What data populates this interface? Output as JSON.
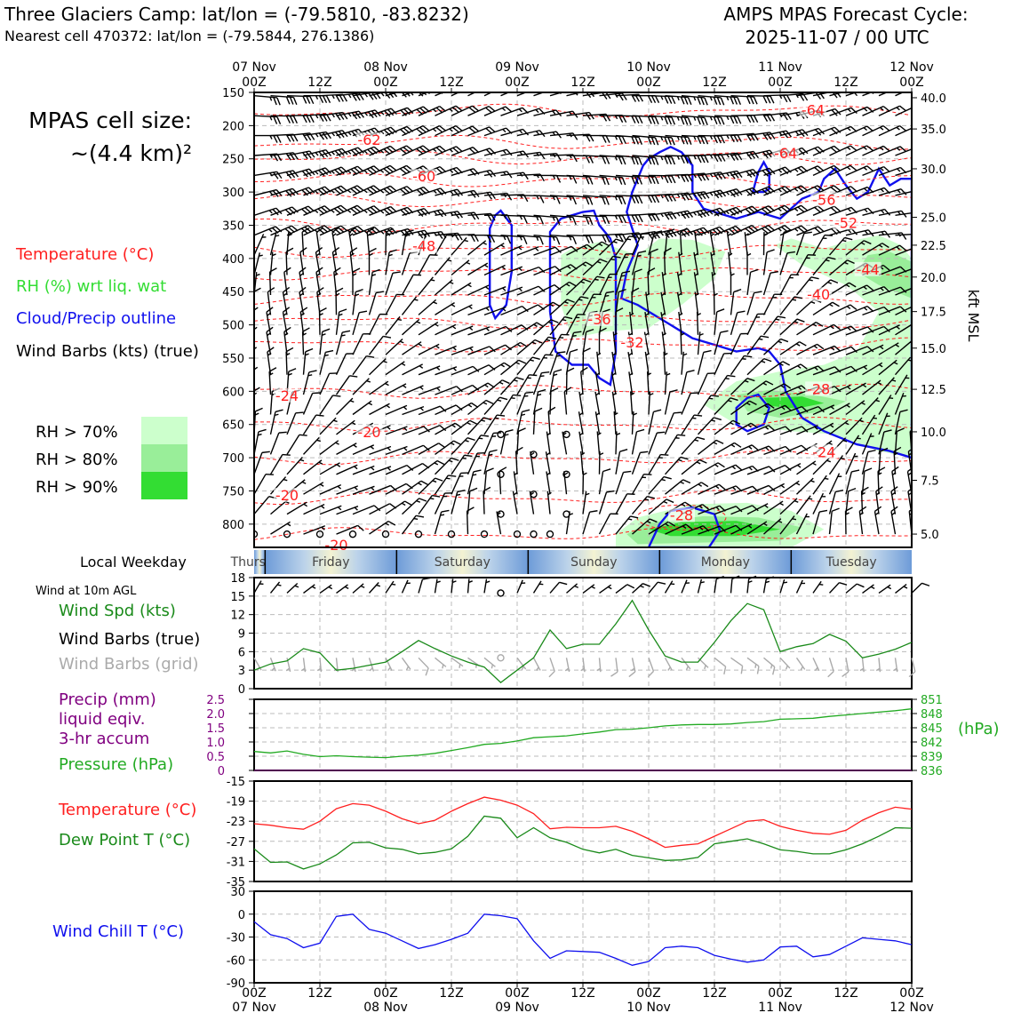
{
  "header": {
    "site_title": "Three Glaciers Camp: lat/lon = (-79.5810, -83.8232)",
    "nearest_cell": "Nearest cell 470372: lat/lon = (-79.5844, 276.1386)",
    "forecast_line1": "AMPS MPAS Forecast Cycle:",
    "forecast_line2": "2025-11-07 / 00 UTC"
  },
  "cell_size": {
    "line1": "MPAS cell size:",
    "line2": "~(4.4 km)²"
  },
  "time_axis": {
    "top_ticks": [
      {
        "t": 0,
        "hour": "00Z",
        "date": "07 Nov"
      },
      {
        "t": 12,
        "hour": "12Z",
        "date": ""
      },
      {
        "t": 24,
        "hour": "00Z",
        "date": "08 Nov"
      },
      {
        "t": 36,
        "hour": "12Z",
        "date": ""
      },
      {
        "t": 48,
        "hour": "00Z",
        "date": "09 Nov"
      },
      {
        "t": 60,
        "hour": "12Z",
        "date": ""
      },
      {
        "t": 72,
        "hour": "00Z",
        "date": "10 Nov"
      },
      {
        "t": 84,
        "hour": "12Z",
        "date": ""
      },
      {
        "t": 96,
        "hour": "00Z",
        "date": "11 Nov"
      },
      {
        "t": 108,
        "hour": "12Z",
        "date": ""
      },
      {
        "t": 120,
        "hour": "00Z",
        "date": "12 Nov"
      }
    ],
    "range_hours": [
      0,
      120
    ]
  },
  "chart_data": [
    {
      "name": "upper-air cross section",
      "type": "heatmap",
      "yaxis_left": {
        "label": "pressure (hPa)",
        "ticks": [
          150,
          200,
          250,
          300,
          350,
          400,
          450,
          500,
          550,
          600,
          650,
          700,
          750,
          800
        ],
        "range": [
          150,
          835
        ]
      },
      "yaxis_right": {
        "label": "kft MSL",
        "ticks": [
          {
            "p": 158,
            "v": "40.0"
          },
          {
            "p": 205,
            "v": "35.0"
          },
          {
            "p": 265,
            "v": "30.0"
          },
          {
            "p": 338,
            "v": "25.0"
          },
          {
            "p": 380,
            "v": "22.5"
          },
          {
            "p": 428,
            "v": "20.0"
          },
          {
            "p": 480,
            "v": "17.5"
          },
          {
            "p": 535,
            "v": "15.0"
          },
          {
            "p": 597,
            "v": "12.5"
          },
          {
            "p": 661,
            "v": "10.0"
          },
          {
            "p": 734,
            "v": "7.5"
          },
          {
            "p": 815,
            "v": "5.0"
          }
        ]
      },
      "legend": [
        {
          "label": "Temperature (°C)",
          "color": "#ff2020"
        },
        {
          "label": "RH (%) wrt liq. wat",
          "color": "#33dd33"
        },
        {
          "label": "Cloud/Precip outline",
          "color": "#1010ee"
        },
        {
          "label": "Wind Barbs (kts) (true)",
          "color": "#000000"
        }
      ],
      "rh_legend": [
        {
          "label": "RH > 70%",
          "color": "#ccffcc"
        },
        {
          "label": "RH > 80%",
          "color": "#99ee99"
        },
        {
          "label": "RH > 90%",
          "color": "#33dd33"
        }
      ],
      "temperature_labels": [
        {
          "t": 102,
          "p": 180,
          "v": "-64"
        },
        {
          "t": 21,
          "p": 225,
          "v": "-62"
        },
        {
          "t": 97,
          "p": 245,
          "v": "-64"
        },
        {
          "t": 31,
          "p": 280,
          "v": "-60"
        },
        {
          "t": 104,
          "p": 315,
          "v": "-56"
        },
        {
          "t": 108,
          "p": 350,
          "v": "-52"
        },
        {
          "t": 31,
          "p": 385,
          "v": "-48"
        },
        {
          "t": 112,
          "p": 420,
          "v": "-44"
        },
        {
          "t": 103,
          "p": 458,
          "v": "-40"
        },
        {
          "t": 63,
          "p": 495,
          "v": "-36"
        },
        {
          "t": 69,
          "p": 530,
          "v": "-32"
        },
        {
          "t": 103,
          "p": 600,
          "v": "-28"
        },
        {
          "t": 6,
          "p": 610,
          "v": "-24"
        },
        {
          "t": 104,
          "p": 695,
          "v": "-24"
        },
        {
          "t": 21,
          "p": 665,
          "v": "-20"
        },
        {
          "t": 6,
          "p": 760,
          "v": "-20"
        },
        {
          "t": 15,
          "p": 835,
          "v": "-20"
        },
        {
          "t": 78,
          "p": 790,
          "v": "-28"
        }
      ]
    },
    {
      "name": "10 m wind",
      "type": "line",
      "title": "Wind at 10m AGL",
      "labels": [
        "Wind Spd (kts)",
        "Wind Barbs (true)",
        "Wind Barbs (grid)"
      ],
      "yticks": [
        0,
        3,
        6,
        9,
        12,
        15,
        18
      ],
      "ylim": [
        0,
        18
      ],
      "x": [
        0,
        3,
        6,
        9,
        12,
        15,
        18,
        21,
        24,
        27,
        30,
        33,
        36,
        39,
        42,
        45,
        48,
        51,
        54,
        57,
        60,
        63,
        66,
        69,
        72,
        75,
        78,
        81,
        84,
        87,
        90,
        93,
        96,
        99,
        102,
        105,
        108,
        111,
        114,
        117,
        120
      ],
      "values": [
        3,
        4,
        4.5,
        6.5,
        5.8,
        3,
        3.3,
        3.8,
        4.3,
        6,
        7.8,
        6.5,
        5.3,
        4.3,
        3.5,
        1,
        3,
        5,
        9.5,
        6.5,
        7.2,
        7.2,
        10.5,
        14.3,
        9.5,
        5.3,
        4.3,
        4.3,
        7.5,
        11,
        13.8,
        12.8,
        6,
        6.8,
        7.3,
        8.8,
        7.7,
        5,
        5.6,
        6.4,
        7.5
      ]
    },
    {
      "name": "precip and pressure",
      "type": "line",
      "labels": [
        "Precip (mm)",
        "liquid eqiv.",
        "3-hr accum",
        "Pressure (hPa)"
      ],
      "left_ticks": [
        "0",
        "0.5",
        "1.0",
        "1.5",
        "2.0",
        "2.5"
      ],
      "left_lim": [
        0,
        2.5
      ],
      "right_ticks": [
        "836",
        "839",
        "842",
        "845",
        "848",
        "851"
      ],
      "right_lim": [
        836,
        851
      ],
      "right_unit": "(hPa)",
      "x": [
        0,
        3,
        6,
        9,
        12,
        15,
        18,
        21,
        24,
        27,
        30,
        33,
        36,
        39,
        42,
        45,
        48,
        51,
        54,
        57,
        60,
        63,
        66,
        69,
        72,
        75,
        78,
        81,
        84,
        87,
        90,
        93,
        96,
        99,
        102,
        105,
        108,
        111,
        114,
        117,
        120
      ],
      "pressure": [
        840,
        839.7,
        840.1,
        839.4,
        838.9,
        839.1,
        838.9,
        838.8,
        838.7,
        839.0,
        839.2,
        839.6,
        840.2,
        840.8,
        841.5,
        841.7,
        842.2,
        842.9,
        843.1,
        843.3,
        843.7,
        844.1,
        844.6,
        844.7,
        845.0,
        845.4,
        845.6,
        845.7,
        845.7,
        845.8,
        846.1,
        846.3,
        846.8,
        846.9,
        847.0,
        847.4,
        847.7,
        848.0,
        848.3,
        848.6,
        849.0
      ],
      "precip": [
        0,
        0,
        0,
        0,
        0,
        0,
        0,
        0,
        0,
        0,
        0,
        0,
        0,
        0,
        0,
        0,
        0,
        0,
        0,
        0,
        0,
        0,
        0,
        0,
        0,
        0,
        0,
        0,
        0,
        0,
        0,
        0,
        0,
        0,
        0,
        0,
        0,
        0,
        0,
        0,
        0
      ]
    },
    {
      "name": "temperature and dew point",
      "type": "line",
      "labels": [
        "Temperature (°C)",
        "Dew Point T (°C)"
      ],
      "yticks": [
        "-35",
        "-31",
        "-27",
        "-23",
        "-19",
        "-15"
      ],
      "ylim": [
        -35,
        -15
      ],
      "x": [
        0,
        3,
        6,
        9,
        12,
        15,
        18,
        21,
        24,
        27,
        30,
        33,
        36,
        39,
        42,
        45,
        48,
        51,
        54,
        57,
        60,
        63,
        66,
        69,
        72,
        75,
        78,
        81,
        84,
        87,
        90,
        93,
        96,
        99,
        102,
        105,
        108,
        111,
        114,
        117,
        120
      ],
      "temperature": [
        -23.5,
        -23.8,
        -24.3,
        -24.6,
        -23,
        -20.5,
        -19.5,
        -19.8,
        -21,
        -22.5,
        -23.5,
        -22.8,
        -21,
        -19.5,
        -18.2,
        -18.8,
        -19.8,
        -21.5,
        -24.5,
        -24.2,
        -24.3,
        -24.3,
        -24,
        -25,
        -26.5,
        -28.2,
        -27.8,
        -27.5,
        -26,
        -24.5,
        -23,
        -22.7,
        -24,
        -24.8,
        -25.4,
        -25.6,
        -24.8,
        -22.8,
        -21.3,
        -20.2,
        -20.6
      ],
      "dew_point": [
        -28.5,
        -31.2,
        -31.1,
        -32.5,
        -31.5,
        -29.7,
        -27.3,
        -27.2,
        -28.3,
        -28.6,
        -29.5,
        -29.2,
        -28.5,
        -26,
        -22,
        -22.4,
        -26.3,
        -24.3,
        -26.3,
        -27.2,
        -28.6,
        -29.3,
        -28.6,
        -29.8,
        -30.3,
        -30.8,
        -30.7,
        -30.2,
        -27.5,
        -27,
        -26.5,
        -27.5,
        -28.7,
        -29,
        -29.5,
        -29.5,
        -28.7,
        -27.5,
        -26,
        -24.3,
        -24.4
      ]
    },
    {
      "name": "wind chill",
      "type": "line",
      "labels": [
        "Wind Chill T (°C)"
      ],
      "yticks": [
        "-90",
        "-60",
        "-30",
        "0",
        "30"
      ],
      "ylim": [
        -90,
        30
      ],
      "x": [
        0,
        3,
        6,
        9,
        12,
        15,
        18,
        21,
        24,
        27,
        30,
        33,
        36,
        39,
        42,
        45,
        48,
        51,
        54,
        57,
        60,
        63,
        66,
        69,
        72,
        75,
        78,
        81,
        84,
        87,
        90,
        93,
        96,
        99,
        102,
        105,
        108,
        111,
        114,
        117,
        120
      ],
      "values": [
        -10,
        -27,
        -32,
        -44,
        -38,
        -3,
        0,
        -20,
        -25,
        -35,
        -45,
        -40,
        -33,
        -25,
        0,
        -2,
        -6,
        -35,
        -58,
        -48,
        -49,
        -50,
        -58,
        -67,
        -62,
        -44,
        -42,
        -44,
        -54,
        -59,
        -63,
        -60,
        -43,
        -42,
        -56,
        -53,
        -42,
        -31,
        -33,
        -35,
        -40
      ]
    }
  ],
  "weekday_bar": {
    "label": "Local Weekday",
    "days": [
      {
        "name": "Thursday",
        "start": -2,
        "end": 2
      },
      {
        "name": "Friday",
        "start": 2,
        "end": 26
      },
      {
        "name": "Saturday",
        "start": 26,
        "end": 50
      },
      {
        "name": "Sunday",
        "start": 50,
        "end": 74
      },
      {
        "name": "Monday",
        "start": 74,
        "end": 98
      },
      {
        "name": "Tuesday",
        "start": 98,
        "end": 122
      }
    ]
  },
  "colors": {
    "temperature": "#ff2020",
    "rh": "#33dd33",
    "cloud": "#1010ee",
    "wind_speed": "#1a8a1a",
    "barb_grid": "#aaaaaa",
    "precip": "#800080",
    "pressure": "#22aa22",
    "dew_point": "#1a8a1a",
    "wind_chill": "#1010ee"
  }
}
